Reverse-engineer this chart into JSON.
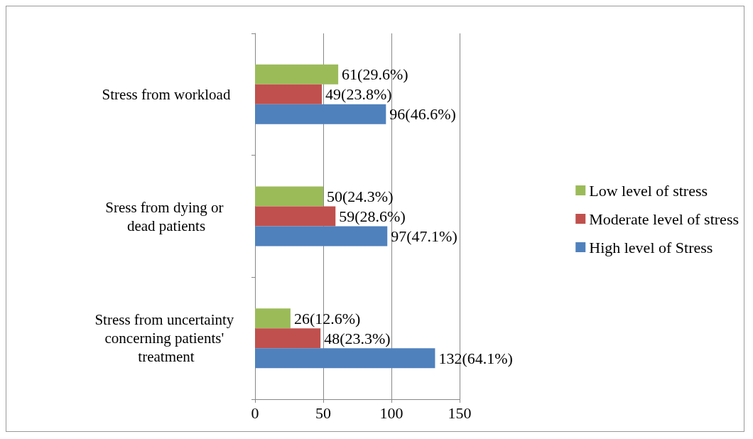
{
  "chart_data": {
    "type": "bar",
    "orientation": "horizontal",
    "categories": [
      "Stress from workload",
      "Sress from dying or dead patients",
      "Stress from uncertainty concerning patients' treatment"
    ],
    "series": [
      {
        "name": "Low level of stress",
        "color": "#9bbb59",
        "values": [
          61,
          50,
          26
        ],
        "value_labels": [
          "61(29.6%)",
          "50(24.3%)",
          "26(12.6%)"
        ]
      },
      {
        "name": "Moderate level of stress",
        "color": "#c0504d",
        "values": [
          49,
          59,
          48
        ],
        "value_labels": [
          "49(23.8%)",
          "59(28.6%)",
          "48(23.3%)"
        ]
      },
      {
        "name": "High level of Stress",
        "color": "#4f81bd",
        "values": [
          96,
          97,
          132
        ],
        "value_labels": [
          "96(46.6%)",
          "97(47.1%)",
          "132(64.1%)"
        ]
      }
    ],
    "xlim": [
      0,
      150
    ],
    "xticks": [
      0,
      50,
      100,
      150
    ],
    "grid": "x",
    "legend": "right"
  }
}
